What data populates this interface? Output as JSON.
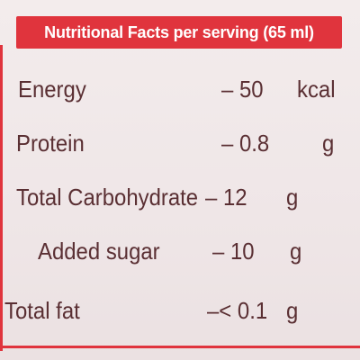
{
  "header": {
    "title": "Nutritional Facts per serving (65 ml)"
  },
  "table": {
    "rows": [
      [
        "Energy",
        "– 50",
        "kcal"
      ],
      [
        "Protein",
        "– 0.8",
        "g"
      ],
      [
        "Total Carbohydrate",
        "– 12",
        "g"
      ],
      [
        "Added sugar",
        "– 10",
        "g"
      ],
      [
        "Total fat",
        "–< 0.1",
        "g"
      ]
    ]
  }
}
